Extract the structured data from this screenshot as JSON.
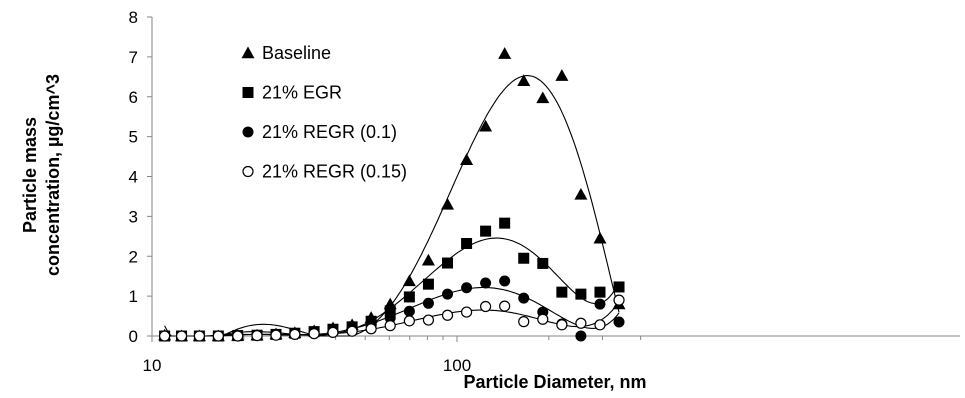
{
  "chart_data": {
    "type": "scatter",
    "title": "",
    "xlabel": "Particle Diameter, nm",
    "ylabel_lines": [
      "Particle mass",
      "concentration, µg/cm^3"
    ],
    "x_scale": "log",
    "xlim": [
      10,
      400
    ],
    "ylim": [
      0,
      8
    ],
    "x_ticks": [
      10,
      100
    ],
    "y_ticks": [
      0,
      1,
      2,
      3,
      4,
      5,
      6,
      7,
      8
    ],
    "grid": false,
    "legend_position": "top-left",
    "trendlines": true,
    "series": [
      {
        "name": "Baseline",
        "marker": "triangle",
        "color": "#000000",
        "x": [
          11,
          12.5,
          14.3,
          16.5,
          19.1,
          22.1,
          25.5,
          29.4,
          34,
          39.2,
          45.3,
          52.3,
          60.4,
          69.8,
          80.6,
          93.1,
          107.5,
          124.1,
          143.3,
          165.5,
          191.1,
          220.7,
          254.8,
          294.3,
          339.8
        ],
        "y": [
          0.02,
          0.0,
          0.0,
          0.0,
          0.01,
          0.02,
          0.05,
          0.08,
          0.13,
          0.2,
          0.28,
          0.46,
          0.8,
          1.38,
          1.9,
          3.3,
          4.42,
          5.26,
          7.08,
          6.4,
          5.97,
          6.53,
          3.55,
          2.45,
          0.8
        ]
      },
      {
        "name": "21% EGR",
        "marker": "square",
        "color": "#000000",
        "x": [
          11,
          12.5,
          14.3,
          16.5,
          19.1,
          22.1,
          25.5,
          29.4,
          34,
          39.2,
          45.3,
          52.3,
          60.4,
          69.8,
          80.6,
          93.1,
          107.5,
          124.1,
          143.3,
          165.5,
          191.1,
          220.7,
          254.8,
          294.3,
          339.8
        ],
        "y": [
          0.0,
          0.0,
          0.0,
          0.0,
          0.01,
          0.02,
          0.04,
          0.07,
          0.11,
          0.17,
          0.23,
          0.37,
          0.63,
          0.98,
          1.3,
          1.83,
          2.32,
          2.63,
          2.83,
          1.95,
          1.82,
          1.1,
          1.05,
          1.1,
          1.23
        ]
      },
      {
        "name": "21% REGR (0.1)",
        "marker": "circle-filled",
        "color": "#000000",
        "x": [
          11,
          12.5,
          14.3,
          16.5,
          19.1,
          22.1,
          25.5,
          29.4,
          34,
          39.2,
          45.3,
          52.3,
          60.4,
          69.8,
          80.6,
          93.1,
          107.5,
          124.1,
          143.3,
          165.5,
          191.1,
          220.7,
          254.8,
          294.3,
          339.8
        ],
        "y": [
          0.0,
          0.0,
          0.0,
          0.0,
          0.01,
          0.02,
          0.03,
          0.05,
          0.09,
          0.12,
          0.18,
          0.3,
          0.45,
          0.62,
          0.82,
          1.05,
          1.21,
          1.33,
          1.38,
          0.95,
          0.6,
          0.3,
          0.0,
          0.8,
          0.35
        ]
      },
      {
        "name": "21% REGR (0.15)",
        "marker": "circle-open",
        "color": "#000000",
        "x": [
          11,
          12.5,
          14.3,
          16.5,
          19.1,
          22.1,
          25.5,
          29.4,
          34,
          39.2,
          45.3,
          52.3,
          60.4,
          69.8,
          80.6,
          93.1,
          107.5,
          124.1,
          143.3,
          165.5,
          191.1,
          220.7,
          254.8,
          294.3,
          339.8
        ],
        "y": [
          0.0,
          0.0,
          0.0,
          0.0,
          0.0,
          0.01,
          0.02,
          0.04,
          0.06,
          0.09,
          0.12,
          0.18,
          0.26,
          0.38,
          0.4,
          0.52,
          0.6,
          0.74,
          0.75,
          0.36,
          0.42,
          0.28,
          0.32,
          0.28,
          0.9
        ]
      }
    ]
  }
}
